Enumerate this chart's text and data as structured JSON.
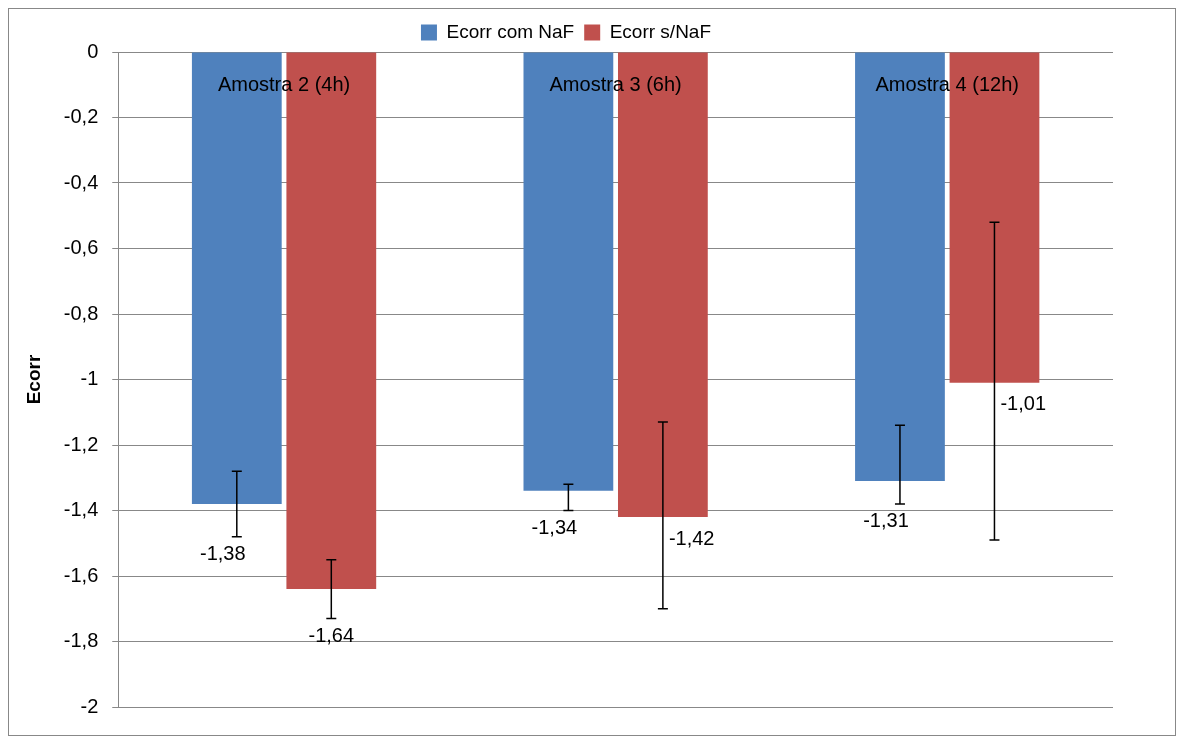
{
  "chart_data": {
    "type": "bar",
    "ylabel": "Ecorr",
    "categories": [
      "Amostra 2 (4h)",
      "Amostra 3 (6h)",
      "Amostra 4 (12h)"
    ],
    "series": [
      {
        "name": "Ecorr com NaF",
        "color": "#4f81bd",
        "values": [
          -1.38,
          -1.34,
          -1.31
        ],
        "value_labels": [
          "-1,38",
          "-1,34",
          "-1,31"
        ],
        "errors": [
          [
            -1.48,
            -1.28
          ],
          [
            -1.4,
            -1.32
          ],
          [
            -1.38,
            -1.14
          ]
        ]
      },
      {
        "name": "Ecorr s/NaF",
        "color": "#c0504d",
        "values": [
          -1.64,
          -1.42,
          -1.01
        ],
        "value_labels": [
          "-1,64",
          "-1,42",
          "-1,01"
        ],
        "errors": [
          [
            -1.73,
            -1.55
          ],
          [
            -1.7,
            -1.13
          ],
          [
            -1.49,
            -0.52
          ]
        ]
      }
    ],
    "ylim": [
      -2,
      0
    ],
    "yticks": [
      {
        "value": -2,
        "label": "-2"
      },
      {
        "value": -1.8,
        "label": "-1,8"
      },
      {
        "value": -1.6,
        "label": "-1,6"
      },
      {
        "value": -1.4,
        "label": "-1,4"
      },
      {
        "value": -1.2,
        "label": "-1,2"
      },
      {
        "value": -1,
        "label": "-1"
      },
      {
        "value": -0.8,
        "label": "-0,8"
      },
      {
        "value": -0.6,
        "label": "-0,6"
      },
      {
        "value": -0.4,
        "label": "-0,4"
      },
      {
        "value": -0.2,
        "label": "-0,2"
      },
      {
        "value": 0,
        "label": "0"
      }
    ],
    "grid": "y",
    "legend": "top"
  }
}
